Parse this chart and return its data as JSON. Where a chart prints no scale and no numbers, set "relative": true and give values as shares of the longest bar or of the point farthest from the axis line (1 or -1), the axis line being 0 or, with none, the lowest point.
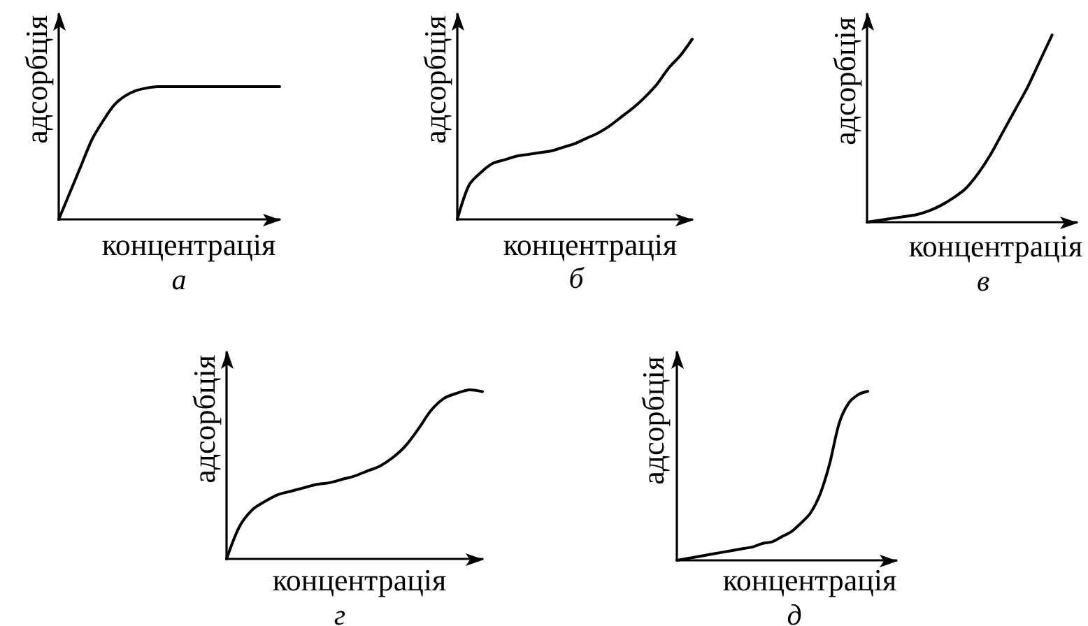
{
  "chart_data": [
    {
      "type": "line",
      "title": "а",
      "xlabel": "концентрація",
      "ylabel": "адсорбція",
      "relative": true,
      "line_style": "solid",
      "categories": [
        null,
        null,
        null,
        null,
        null,
        null,
        null,
        null,
        null,
        null,
        null,
        null,
        null,
        null,
        null,
        null,
        null,
        null,
        null,
        null,
        null
      ],
      "series": [
        {
          "color": "#000000",
          "values": [
            0,
            0.2,
            0.4,
            0.6,
            0.74,
            0.86,
            0.93,
            0.97,
            0.99,
            1,
            1,
            1,
            1,
            1,
            1,
            1,
            1,
            1,
            1,
            1,
            1
          ]
        }
      ]
    },
    {
      "type": "line",
      "title": "б",
      "xlabel": "концентрація",
      "ylabel": "адсорбція",
      "relative": true,
      "line_style": "solid",
      "categories": [
        null,
        null,
        null,
        null,
        null,
        null,
        null,
        null,
        null,
        null,
        null,
        null,
        null,
        null,
        null,
        null,
        null,
        null,
        null,
        null,
        null
      ],
      "series": [
        {
          "color": "#000000",
          "values": [
            0,
            0.19,
            0.26,
            0.31,
            0.33,
            0.35,
            0.36,
            0.37,
            0.38,
            0.4,
            0.42,
            0.45,
            0.48,
            0.52,
            0.57,
            0.62,
            0.68,
            0.75,
            0.84,
            0.91,
            1
          ]
        }
      ]
    },
    {
      "type": "line",
      "title": "в",
      "xlabel": "концентрація",
      "ylabel": "адсорбція",
      "relative": true,
      "line_style": "solid",
      "categories": [
        null,
        null,
        null,
        null,
        null,
        null,
        null,
        null,
        null,
        null,
        null,
        null,
        null,
        null,
        null,
        null,
        null,
        null
      ],
      "series": [
        {
          "color": "#000000",
          "values": [
            0,
            0.01,
            0.02,
            0.03,
            0.04,
            0.06,
            0.09,
            0.13,
            0.18,
            0.26,
            0.36,
            0.48,
            0.6,
            0.72,
            0.86,
            1,
            null,
            null
          ]
        }
      ]
    },
    {
      "type": "line",
      "title": "г",
      "xlabel": "концентрація",
      "ylabel": "адсорбція",
      "relative": true,
      "line_style": "solid",
      "categories": [
        null,
        null,
        null,
        null,
        null,
        null,
        null,
        null,
        null,
        null,
        null,
        null,
        null,
        null,
        null,
        null,
        null,
        null,
        null,
        null,
        null
      ],
      "series": [
        {
          "color": "#000000",
          "values": [
            0,
            0.19,
            0.29,
            0.34,
            0.38,
            0.4,
            0.42,
            0.44,
            0.45,
            0.47,
            0.49,
            0.52,
            0.55,
            0.6,
            0.67,
            0.77,
            0.88,
            0.95,
            0.98,
            1,
            0.99
          ]
        }
      ]
    },
    {
      "type": "line",
      "title": "д",
      "xlabel": "концентрація",
      "ylabel": "адсорбція",
      "relative": true,
      "line_style": "solid",
      "categories": [
        null,
        null,
        null,
        null,
        null,
        null,
        null,
        null,
        null,
        null,
        null,
        null,
        null,
        null,
        null,
        null,
        null,
        null,
        null,
        null,
        null,
        null,
        null,
        null
      ],
      "series": [
        {
          "color": "#000000",
          "values": [
            0,
            0.01,
            0.02,
            0.03,
            0.04,
            0.05,
            0.06,
            0.07,
            0.08,
            0.1,
            0.11,
            0.14,
            0.17,
            0.22,
            0.28,
            0.39,
            0.57,
            0.81,
            0.93,
            0.98,
            1,
            null,
            null,
            null
          ]
        }
      ]
    }
  ]
}
